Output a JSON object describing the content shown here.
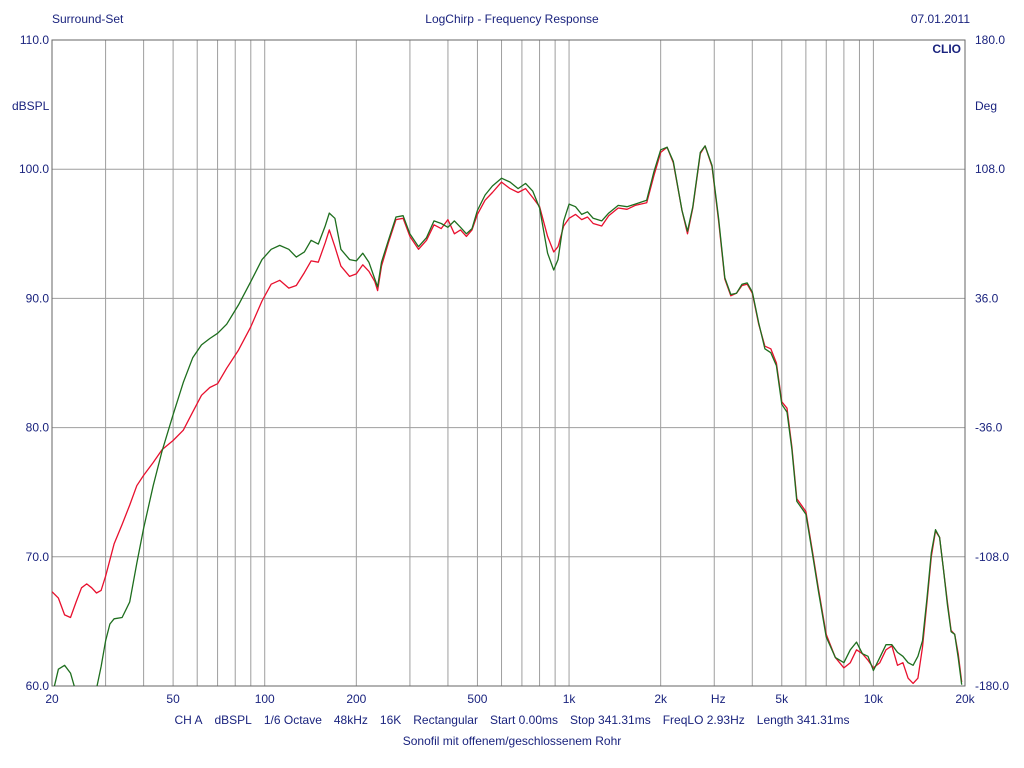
{
  "header": {
    "left": "Surround-Set",
    "center": "LogChirp - Frequency Response",
    "right": "07.01.2011"
  },
  "footer": {
    "items": [
      "CH A",
      "dBSPL",
      "1/6 Octave",
      "48kHz",
      "16K",
      "Rectangular",
      "Start 0.00ms",
      "Stop 341.31ms",
      "FreqLO 2.93Hz",
      "Length 341.31ms"
    ],
    "subtitle": "Sonofil mit offenem/geschlossenem Rohr"
  },
  "chart_data": {
    "type": "line",
    "brand": "CLIO",
    "x_scale": "log",
    "xlim": [
      20,
      20000
    ],
    "ylim": [
      60,
      110
    ],
    "y2lim": [
      -180,
      180
    ],
    "grid": true,
    "ylabel": "dBSPL",
    "y2label": "Deg",
    "xunit_label": "Hz",
    "x_tick_labels": [
      {
        "value": 20,
        "label": "20"
      },
      {
        "value": 50,
        "label": "50"
      },
      {
        "value": 100,
        "label": "100"
      },
      {
        "value": 200,
        "label": "200"
      },
      {
        "value": 500,
        "label": "500"
      },
      {
        "value": 1000,
        "label": "1k"
      },
      {
        "value": 2000,
        "label": "2k"
      },
      {
        "value": 5000,
        "label": "5k"
      },
      {
        "value": 10000,
        "label": "10k"
      },
      {
        "value": 20000,
        "label": "20k"
      }
    ],
    "y_ticks": [
      60,
      70,
      80,
      90,
      100,
      110
    ],
    "y_tick_labels": [
      "60.0",
      "70.0",
      "80.0",
      "90.0",
      "100.0",
      "110.0"
    ],
    "y2_ticks": [
      -180,
      -108,
      -36,
      36,
      108,
      180
    ],
    "y2_tick_labels": [
      "-180.0",
      "-108.0",
      "-36.0",
      "36.0",
      "108.0",
      "180.0"
    ],
    "colors": {
      "grid": "#9e9e9e",
      "axis_text": "#1a237e",
      "brand": "#1a237e",
      "series_red": "#e8102e",
      "series_green": "#1e6e1e"
    },
    "series": [
      {
        "color": "#e8102e",
        "points": [
          [
            20,
            67.3
          ],
          [
            21,
            66.8
          ],
          [
            22,
            65.5
          ],
          [
            23,
            65.3
          ],
          [
            24,
            66.5
          ],
          [
            25,
            67.6
          ],
          [
            26,
            67.9
          ],
          [
            27,
            67.6
          ],
          [
            28,
            67.2
          ],
          [
            29,
            67.4
          ],
          [
            30,
            68.5
          ],
          [
            32,
            71
          ],
          [
            34,
            72.5
          ],
          [
            36,
            74
          ],
          [
            38,
            75.5
          ],
          [
            40,
            76.3
          ],
          [
            43,
            77.3
          ],
          [
            46,
            78.3
          ],
          [
            50,
            79
          ],
          [
            54,
            79.8
          ],
          [
            58,
            81.2
          ],
          [
            62,
            82.5
          ],
          [
            66,
            83.1
          ],
          [
            70,
            83.4
          ],
          [
            75,
            84.6
          ],
          [
            82,
            86
          ],
          [
            90,
            87.8
          ],
          [
            98,
            89.8
          ],
          [
            105,
            91.1
          ],
          [
            112,
            91.4
          ],
          [
            120,
            90.8
          ],
          [
            127,
            91
          ],
          [
            135,
            92
          ],
          [
            142,
            92.9
          ],
          [
            150,
            92.8
          ],
          [
            158,
            94.3
          ],
          [
            163,
            95.3
          ],
          [
            170,
            94
          ],
          [
            178,
            92.5
          ],
          [
            190,
            91.7
          ],
          [
            200,
            91.9
          ],
          [
            210,
            92.6
          ],
          [
            220,
            92.1
          ],
          [
            230,
            91.3
          ],
          [
            235,
            90.6
          ],
          [
            242,
            92.5
          ],
          [
            255,
            94.3
          ],
          [
            270,
            96.1
          ],
          [
            285,
            96.2
          ],
          [
            300,
            94.8
          ],
          [
            320,
            93.8
          ],
          [
            340,
            94.5
          ],
          [
            360,
            95.7
          ],
          [
            380,
            95.4
          ],
          [
            400,
            96.1
          ],
          [
            420,
            95
          ],
          [
            440,
            95.3
          ],
          [
            460,
            94.8
          ],
          [
            480,
            95.3
          ],
          [
            500,
            96.5
          ],
          [
            530,
            97.6
          ],
          [
            560,
            98.2
          ],
          [
            600,
            99
          ],
          [
            640,
            98.5
          ],
          [
            680,
            98.2
          ],
          [
            720,
            98.5
          ],
          [
            760,
            97.8
          ],
          [
            800,
            97.1
          ],
          [
            850,
            94.8
          ],
          [
            890,
            93.6
          ],
          [
            920,
            94
          ],
          [
            960,
            95.6
          ],
          [
            1000,
            96.2
          ],
          [
            1050,
            96.5
          ],
          [
            1100,
            96.1
          ],
          [
            1150,
            96.3
          ],
          [
            1200,
            95.8
          ],
          [
            1280,
            95.6
          ],
          [
            1350,
            96.4
          ],
          [
            1450,
            97
          ],
          [
            1550,
            96.9
          ],
          [
            1650,
            97.2
          ],
          [
            1800,
            97.4
          ],
          [
            1900,
            99.5
          ],
          [
            2000,
            101.3
          ],
          [
            2100,
            101.7
          ],
          [
            2200,
            100.5
          ],
          [
            2350,
            96.8
          ],
          [
            2450,
            95
          ],
          [
            2550,
            97
          ],
          [
            2700,
            101.2
          ],
          [
            2800,
            101.8
          ],
          [
            2950,
            100.2
          ],
          [
            3100,
            96
          ],
          [
            3250,
            91.5
          ],
          [
            3400,
            90.2
          ],
          [
            3550,
            90.4
          ],
          [
            3700,
            91
          ],
          [
            3850,
            91.1
          ],
          [
            4000,
            90.4
          ],
          [
            4200,
            88
          ],
          [
            4400,
            86.3
          ],
          [
            4600,
            86.1
          ],
          [
            4800,
            85
          ],
          [
            5000,
            82
          ],
          [
            5200,
            81.5
          ],
          [
            5400,
            78.5
          ],
          [
            5600,
            74.5
          ],
          [
            5800,
            74
          ],
          [
            6000,
            73.5
          ],
          [
            6300,
            70.5
          ],
          [
            6600,
            67.5
          ],
          [
            7000,
            64
          ],
          [
            7500,
            62.2
          ],
          [
            8000,
            61.4
          ],
          [
            8400,
            61.8
          ],
          [
            8800,
            62.8
          ],
          [
            9200,
            62.5
          ],
          [
            9600,
            62
          ],
          [
            10000,
            61.4
          ],
          [
            10500,
            61.8
          ],
          [
            11000,
            62.8
          ],
          [
            11500,
            63.1
          ],
          [
            12000,
            61.6
          ],
          [
            12500,
            61.8
          ],
          [
            13000,
            60.6
          ],
          [
            13500,
            60.2
          ],
          [
            14000,
            60.6
          ],
          [
            14500,
            63
          ],
          [
            15000,
            66.5
          ],
          [
            15500,
            70
          ],
          [
            16000,
            72
          ],
          [
            16500,
            71.5
          ],
          [
            17000,
            69
          ],
          [
            17500,
            66.5
          ],
          [
            18000,
            64.3
          ],
          [
            18500,
            64
          ],
          [
            19000,
            62.5
          ],
          [
            19500,
            60.3
          ]
        ]
      },
      {
        "color": "#1e6e1e",
        "points": [
          [
            20,
            59.2
          ],
          [
            21,
            61.3
          ],
          [
            22,
            61.6
          ],
          [
            23,
            61.0
          ],
          [
            24,
            59.5
          ],
          [
            25,
            59.0
          ],
          [
            27,
            59.0
          ],
          [
            28,
            59.8
          ],
          [
            29,
            61.5
          ],
          [
            30,
            63.5
          ],
          [
            31,
            64.8
          ],
          [
            32,
            65.2
          ],
          [
            34,
            65.3
          ],
          [
            36,
            66.5
          ],
          [
            38,
            69.5
          ],
          [
            40,
            72.2
          ],
          [
            43,
            75.5
          ],
          [
            46,
            78.2
          ],
          [
            50,
            81
          ],
          [
            54,
            83.5
          ],
          [
            58,
            85.4
          ],
          [
            62,
            86.4
          ],
          [
            66,
            86.9
          ],
          [
            70,
            87.3
          ],
          [
            75,
            88
          ],
          [
            82,
            89.5
          ],
          [
            90,
            91.3
          ],
          [
            98,
            93
          ],
          [
            105,
            93.8
          ],
          [
            112,
            94.1
          ],
          [
            120,
            93.8
          ],
          [
            127,
            93.2
          ],
          [
            135,
            93.6
          ],
          [
            142,
            94.5
          ],
          [
            150,
            94.2
          ],
          [
            158,
            95.6
          ],
          [
            163,
            96.6
          ],
          [
            170,
            96.2
          ],
          [
            178,
            93.8
          ],
          [
            190,
            93
          ],
          [
            200,
            92.9
          ],
          [
            210,
            93.5
          ],
          [
            220,
            92.8
          ],
          [
            230,
            91.5
          ],
          [
            235,
            90.9
          ],
          [
            242,
            92.8
          ],
          [
            255,
            94.5
          ],
          [
            270,
            96.3
          ],
          [
            285,
            96.4
          ],
          [
            300,
            95
          ],
          [
            320,
            94
          ],
          [
            340,
            94.7
          ],
          [
            360,
            96
          ],
          [
            380,
            95.8
          ],
          [
            400,
            95.5
          ],
          [
            420,
            96
          ],
          [
            440,
            95.5
          ],
          [
            460,
            95
          ],
          [
            480,
            95.4
          ],
          [
            500,
            96.8
          ],
          [
            530,
            98
          ],
          [
            560,
            98.7
          ],
          [
            600,
            99.3
          ],
          [
            640,
            99
          ],
          [
            680,
            98.5
          ],
          [
            720,
            98.9
          ],
          [
            760,
            98.3
          ],
          [
            800,
            97
          ],
          [
            850,
            93.5
          ],
          [
            890,
            92.2
          ],
          [
            920,
            93
          ],
          [
            960,
            96
          ],
          [
            1000,
            97.3
          ],
          [
            1050,
            97.1
          ],
          [
            1100,
            96.5
          ],
          [
            1150,
            96.7
          ],
          [
            1200,
            96.2
          ],
          [
            1280,
            96
          ],
          [
            1350,
            96.6
          ],
          [
            1450,
            97.2
          ],
          [
            1550,
            97.1
          ],
          [
            1650,
            97.3
          ],
          [
            1800,
            97.6
          ],
          [
            1900,
            99.8
          ],
          [
            2000,
            101.5
          ],
          [
            2100,
            101.7
          ],
          [
            2200,
            100.6
          ],
          [
            2350,
            96.8
          ],
          [
            2450,
            95.2
          ],
          [
            2550,
            97.1
          ],
          [
            2700,
            101.3
          ],
          [
            2800,
            101.8
          ],
          [
            2950,
            100.3
          ],
          [
            3100,
            96.2
          ],
          [
            3250,
            91.6
          ],
          [
            3400,
            90.3
          ],
          [
            3550,
            90.4
          ],
          [
            3700,
            91.1
          ],
          [
            3850,
            91.2
          ],
          [
            4000,
            90.5
          ],
          [
            4200,
            88.1
          ],
          [
            4400,
            86.1
          ],
          [
            4600,
            85.8
          ],
          [
            4800,
            84.8
          ],
          [
            5000,
            81.8
          ],
          [
            5200,
            81.2
          ],
          [
            5400,
            78.3
          ],
          [
            5600,
            74.3
          ],
          [
            5800,
            73.8
          ],
          [
            6000,
            73.3
          ],
          [
            6300,
            70.3
          ],
          [
            6600,
            67.3
          ],
          [
            7000,
            63.8
          ],
          [
            7500,
            62.2
          ],
          [
            8000,
            61.8
          ],
          [
            8400,
            62.8
          ],
          [
            8800,
            63.4
          ],
          [
            9200,
            62.5
          ],
          [
            9600,
            62.3
          ],
          [
            10000,
            61.2
          ],
          [
            10500,
            62.2
          ],
          [
            11000,
            63.2
          ],
          [
            11500,
            63.2
          ],
          [
            12000,
            62.6
          ],
          [
            12500,
            62.3
          ],
          [
            13000,
            61.8
          ],
          [
            13500,
            61.6
          ],
          [
            14000,
            62.3
          ],
          [
            14500,
            63.5
          ],
          [
            15000,
            66.8
          ],
          [
            15500,
            70.3
          ],
          [
            16000,
            72.1
          ],
          [
            16500,
            71.5
          ],
          [
            17000,
            69
          ],
          [
            17500,
            66.3
          ],
          [
            18000,
            64.2
          ],
          [
            18500,
            64
          ],
          [
            19000,
            62.2
          ],
          [
            19500,
            60.1
          ]
        ]
      }
    ]
  }
}
